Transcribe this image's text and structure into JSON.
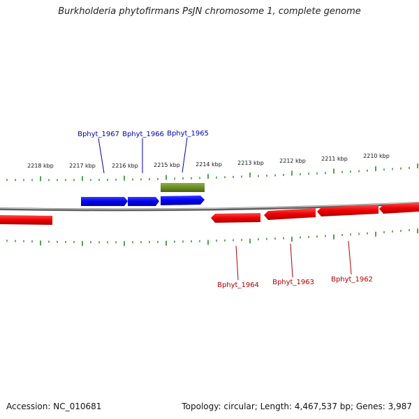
{
  "title": "Burkholderia phytofirmans PsJN chromosome 1, complete genome",
  "footer": {
    "accession": "Accession: NC_010681",
    "summary": "Topology: circular; Length: 4,467,537 bp; Genes: 3,987"
  },
  "colors": {
    "forward_gene": "#0000ee",
    "reverse_gene": "#ee0000",
    "other_feature": "#6b8e23",
    "tick": "#228b22",
    "backbone": "#808080",
    "forward_label": "#0000aa",
    "reverse_label": "#aa0000"
  },
  "scale": {
    "unit": "kbp",
    "labels": [
      "2218 kbp",
      "2217 kbp",
      "2216 kbp",
      "2215 kbp",
      "2214 kbp",
      "2213 kbp",
      "2212 kbp",
      "2211 kbp",
      "2210 kbp"
    ]
  },
  "genes": {
    "forward": [
      {
        "id": "Bphyt_1967",
        "labeled": true
      },
      {
        "id": "Bphyt_1966",
        "labeled": true
      },
      {
        "id": "Bphyt_1965",
        "labeled": true
      }
    ],
    "other": [
      {
        "id": "feature-olive",
        "labeled": false
      }
    ],
    "reverse": [
      {
        "id": "Bphyt_1964",
        "labeled": true
      },
      {
        "id": "Bphyt_1963",
        "labeled": true
      },
      {
        "id": "Bphyt_1962",
        "labeled": true
      }
    ]
  }
}
